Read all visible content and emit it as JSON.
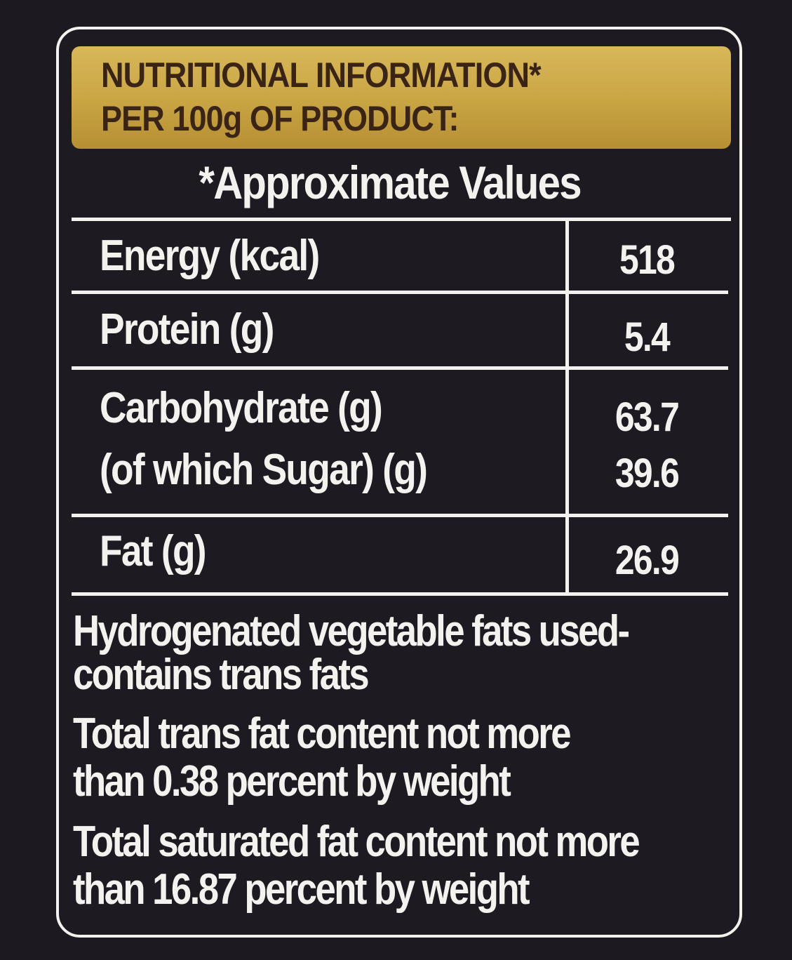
{
  "header": {
    "line1": "NUTRITIONAL INFORMATION*",
    "line2": "PER 100g OF PRODUCT:"
  },
  "subheading": "*Approximate Values",
  "nutrients": [
    {
      "name": "Energy (kcal)",
      "value": "518"
    },
    {
      "name": "Protein (g)",
      "value": "5.4"
    },
    {
      "name": "Carbohydrate (g)",
      "value": "63.7"
    },
    {
      "name": "(of which Sugar) (g)",
      "value": "39.6"
    },
    {
      "name": "Fat (g)",
      "value": "26.9"
    }
  ],
  "notes": [
    "Hydrogenated vegetable fats used-",
    "contains trans fats",
    "Total trans fat content not more",
    "than 0.38 percent by weight",
    "Total saturated fat content not more",
    "than 16.87  percent by weight"
  ],
  "colors": {
    "background": "#1c1920",
    "header_gold": "#c9a443",
    "header_text": "#3a2416",
    "text": "#f4f2ee"
  }
}
